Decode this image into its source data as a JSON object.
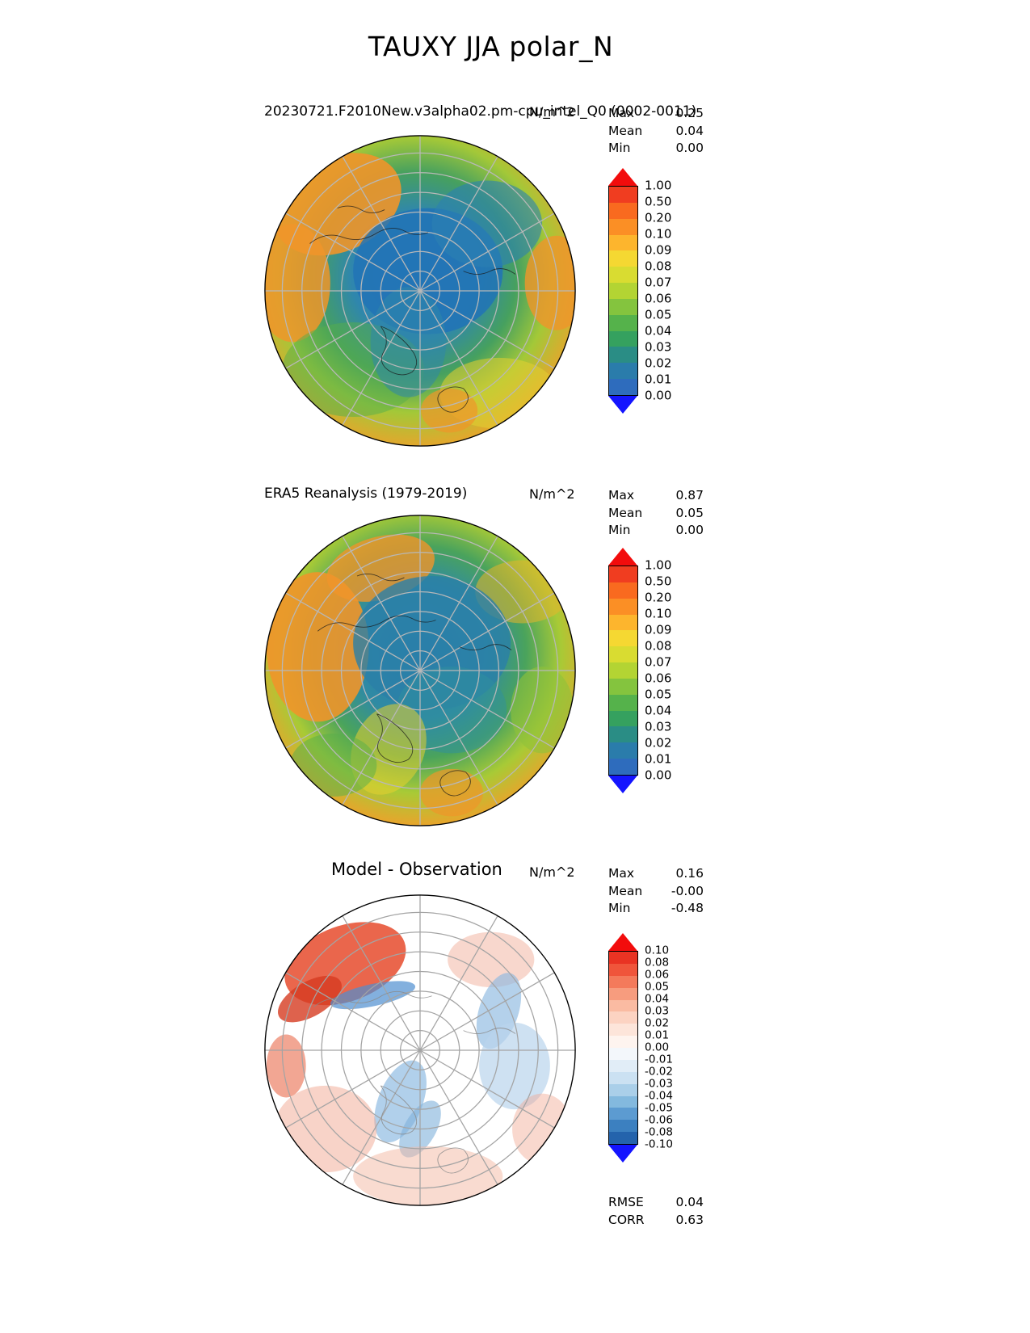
{
  "page_title": "TAUXY JJA polar_N",
  "panels": [
    {
      "id": "model",
      "title": "20230721.F2010New.v3alpha02.pm-cpu_intel_Q0 (0002-0011)",
      "units": "N/m^2",
      "stats": {
        "rows": [
          {
            "label": "Max",
            "value": "0.25"
          },
          {
            "label": "Mean",
            "value": "0.04"
          },
          {
            "label": "Min",
            "value": "0.00"
          }
        ]
      },
      "colorbar": {
        "arrow_top": "#f20c0c",
        "arrow_bottom": "#1414ff",
        "colors": [
          "#f03d20",
          "#f96a1f",
          "#fb8f25",
          "#fdb52d",
          "#f5d832",
          "#d9dc31",
          "#b3d433",
          "#84c43e",
          "#55b24b",
          "#35a15f",
          "#2a8d85",
          "#2a7cab",
          "#2e6cbd"
        ],
        "ticks": [
          "1.00",
          "0.50",
          "0.20",
          "0.10",
          "0.09",
          "0.08",
          "0.07",
          "0.06",
          "0.05",
          "0.04",
          "0.03",
          "0.02",
          "0.01",
          "0.00"
        ]
      }
    },
    {
      "id": "observation",
      "title": "ERA5 Reanalysis (1979-2019)",
      "units": "N/m^2",
      "stats": {
        "rows": [
          {
            "label": "Max",
            "value": "0.87"
          },
          {
            "label": "Mean",
            "value": "0.05"
          },
          {
            "label": "Min",
            "value": "0.00"
          }
        ]
      },
      "colorbar": {
        "arrow_top": "#f20c0c",
        "arrow_bottom": "#1414ff",
        "colors": [
          "#f03d20",
          "#f96a1f",
          "#fb8f25",
          "#fdb52d",
          "#f5d832",
          "#d9dc31",
          "#b3d433",
          "#84c43e",
          "#55b24b",
          "#35a15f",
          "#2a8d85",
          "#2a7cab",
          "#2e6cbd"
        ],
        "ticks": [
          "1.00",
          "0.50",
          "0.20",
          "0.10",
          "0.09",
          "0.08",
          "0.07",
          "0.06",
          "0.05",
          "0.04",
          "0.03",
          "0.02",
          "0.01",
          "0.00"
        ]
      }
    },
    {
      "id": "difference",
      "title": "Model - Observation",
      "units": "N/m^2",
      "stats": {
        "rows": [
          {
            "label": "Max",
            "value": "0.16"
          },
          {
            "label": "Mean",
            "value": "-0.00"
          },
          {
            "label": "Min",
            "value": "-0.48"
          }
        ]
      },
      "colorbar": {
        "arrow_top": "#f20c0c",
        "arrow_bottom": "#1414ff",
        "colors": [
          "#e93323",
          "#f0553b",
          "#f47a5b",
          "#f79c7e",
          "#fabba2",
          "#fcd3c2",
          "#fde5da",
          "#fef4ef",
          "#f3f7fb",
          "#e1edf7",
          "#cbe1f2",
          "#aacfe9",
          "#83b9de",
          "#5c9bd1",
          "#3c80c0",
          "#2463ac"
        ],
        "ticks": [
          "0.10",
          "0.08",
          "0.06",
          "0.05",
          "0.04",
          "0.03",
          "0.02",
          "0.01",
          "0.00",
          "-0.01",
          "-0.02",
          "-0.03",
          "-0.04",
          "-0.05",
          "-0.06",
          "-0.08",
          "-0.10"
        ]
      },
      "footer": {
        "rows": [
          {
            "label": "RMSE",
            "value": "0.04"
          },
          {
            "label": "CORR",
            "value": "0.63"
          }
        ]
      }
    }
  ],
  "chart_data": [
    {
      "type": "heatmap",
      "subtype": "filled_contour_polar_map",
      "projection": "north_polar_stereographic",
      "variable": "TAUXY",
      "season": "JJA",
      "region": "polar_N",
      "title": "20230721.F2010New.v3alpha02.pm-cpu_intel_Q0 (0002-0011)",
      "units": "N/m^2",
      "stats": {
        "max": 0.25,
        "mean": 0.04,
        "min": 0.0
      },
      "contour_levels": [
        0.0,
        0.01,
        0.02,
        0.03,
        0.04,
        0.05,
        0.06,
        0.07,
        0.08,
        0.09,
        0.1,
        0.2,
        0.5,
        1.0
      ],
      "colormap": "rainbow blue-green-yellow-orange-red, extended arrows both ends",
      "legend_position": "right",
      "grid": "graticule lat circles + 30deg meridians"
    },
    {
      "type": "heatmap",
      "subtype": "filled_contour_polar_map",
      "projection": "north_polar_stereographic",
      "variable": "TAUXY",
      "season": "JJA",
      "region": "polar_N",
      "title": "ERA5 Reanalysis (1979-2019)",
      "units": "N/m^2",
      "stats": {
        "max": 0.87,
        "mean": 0.05,
        "min": 0.0
      },
      "contour_levels": [
        0.0,
        0.01,
        0.02,
        0.03,
        0.04,
        0.05,
        0.06,
        0.07,
        0.08,
        0.09,
        0.1,
        0.2,
        0.5,
        1.0
      ],
      "colormap": "rainbow blue-green-yellow-orange-red, extended arrows both ends",
      "legend_position": "right",
      "grid": "graticule lat circles + 30deg meridians"
    },
    {
      "type": "heatmap",
      "subtype": "filled_contour_polar_map_difference",
      "projection": "north_polar_stereographic",
      "variable": "TAUXY",
      "season": "JJA",
      "region": "polar_N",
      "title": "Model - Observation",
      "units": "N/m^2",
      "stats": {
        "max": 0.16,
        "mean": -0.0,
        "min": -0.48
      },
      "contour_levels": [
        -0.1,
        -0.08,
        -0.06,
        -0.05,
        -0.04,
        -0.03,
        -0.02,
        -0.01,
        0.0,
        0.01,
        0.02,
        0.03,
        0.04,
        0.05,
        0.06,
        0.08,
        0.1
      ],
      "colormap": "blue-white-red diverging (RdBu_r), extended arrows both ends",
      "legend_position": "right",
      "rmse": 0.04,
      "corr": 0.63
    }
  ]
}
